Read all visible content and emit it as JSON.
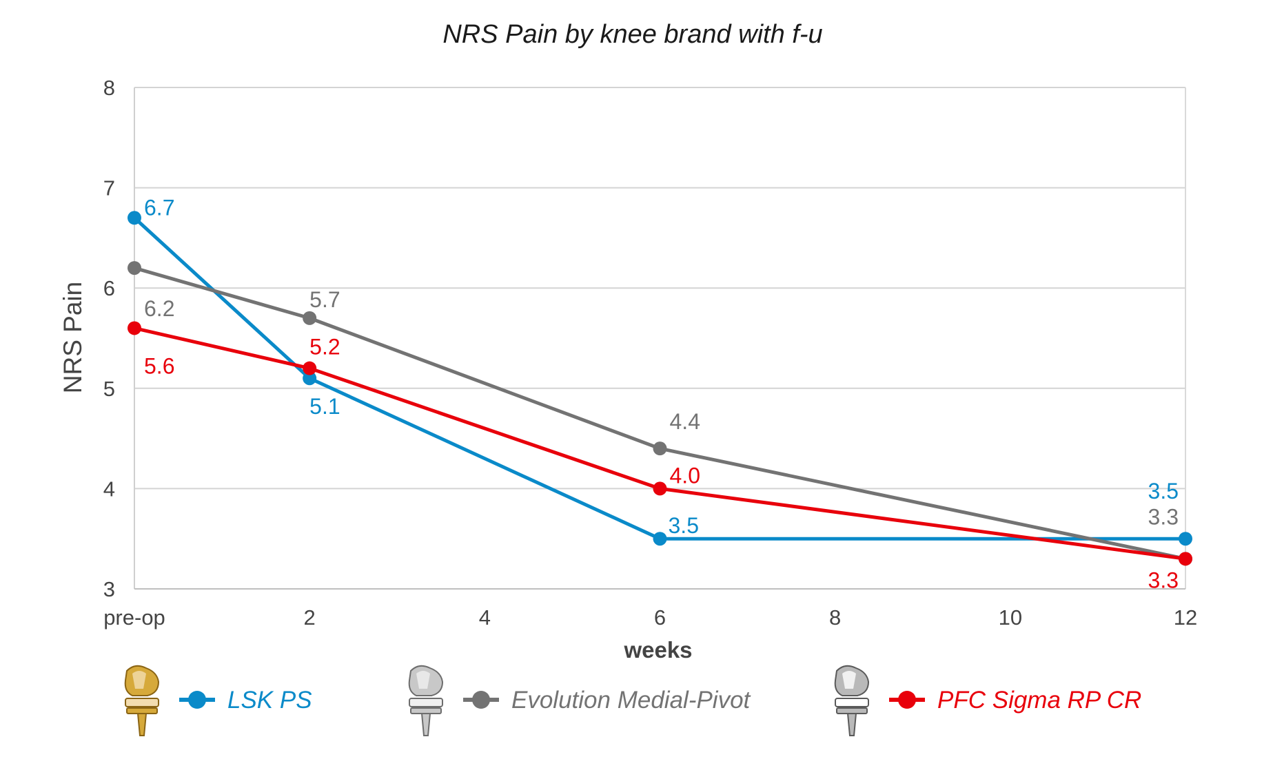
{
  "chart_data": {
    "type": "line",
    "title": "NRS Pain by knee brand with f-u",
    "xlabel": "weeks",
    "ylabel": "NRS Pain",
    "xlim": [
      0,
      12
    ],
    "ylim": [
      3,
      8
    ],
    "x_ticks": [
      {
        "value": 0,
        "label": "pre-op"
      },
      {
        "value": 2,
        "label": "2"
      },
      {
        "value": 4,
        "label": "4"
      },
      {
        "value": 6,
        "label": "6"
      },
      {
        "value": 8,
        "label": "8"
      },
      {
        "value": 10,
        "label": "10"
      },
      {
        "value": 12,
        "label": "12"
      }
    ],
    "y_ticks": [
      {
        "value": 3,
        "label": "3"
      },
      {
        "value": 4,
        "label": "4"
      },
      {
        "value": 5,
        "label": "5"
      },
      {
        "value": 6,
        "label": "6"
      },
      {
        "value": 7,
        "label": "7"
      },
      {
        "value": 8,
        "label": "8"
      }
    ],
    "grid": "horizontal",
    "legend_position": "bottom",
    "series": [
      {
        "name": "LSK PS",
        "color": "#0a8ac9",
        "icon": "gold-knee-implant-icon",
        "points": [
          {
            "x": 0,
            "y": 6.7,
            "label": "6.7"
          },
          {
            "x": 2,
            "y": 5.1,
            "label": "5.1"
          },
          {
            "x": 6,
            "y": 3.5,
            "label": "3.5"
          },
          {
            "x": 12,
            "y": 3.5,
            "label": "3.5"
          }
        ]
      },
      {
        "name": "Evolution Medial-Pivot",
        "color": "#737373",
        "icon": "silver-knee-implant-icon",
        "points": [
          {
            "x": 0,
            "y": 6.2,
            "label": "6.2"
          },
          {
            "x": 2,
            "y": 5.7,
            "label": "5.7"
          },
          {
            "x": 6,
            "y": 4.4,
            "label": "4.4"
          },
          {
            "x": 12,
            "y": 3.3,
            "label": "3.3"
          }
        ]
      },
      {
        "name": "PFC Sigma RP CR",
        "color": "#e8000b",
        "icon": "chrome-knee-implant-icon",
        "points": [
          {
            "x": 0,
            "y": 5.6,
            "label": "5.6"
          },
          {
            "x": 2,
            "y": 5.2,
            "label": "5.2"
          },
          {
            "x": 6,
            "y": 4.0,
            "label": "4.0"
          },
          {
            "x": 12,
            "y": 3.3,
            "label": "3.3"
          }
        ]
      }
    ]
  }
}
